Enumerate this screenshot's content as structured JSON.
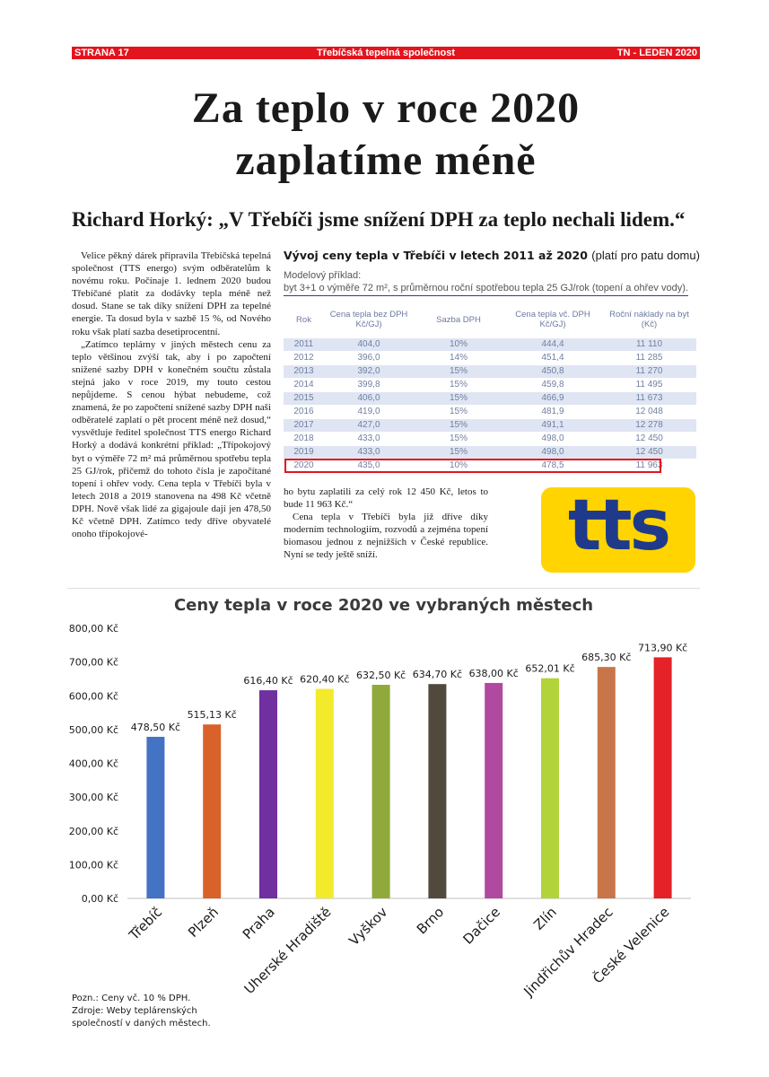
{
  "header": {
    "page": "STRANA 17",
    "publisher": "Třebíčská tepelná společnost",
    "issue": "TN - LEDEN 2020"
  },
  "article": {
    "title_line1": "Za teplo v roce 2020",
    "title_line2": "zaplatíme méně",
    "subtitle": "Richard Horký: „V Třebíči jsme snížení DPH za teplo nechali lidem.“",
    "col1": [
      "Velice pěkný dárek připravila Třebíčská tepelná společnost (TTS energo) svým odběratelům k novému roku. Počínaje 1. lednem 2020 budou Třebíčané platit za dodávky tepla méně než dosud. Stane se tak díky snížení DPH za tepelné energie. Ta dosud byla v sazbě 15 %, od Nového roku však platí sazba desetiprocentní.",
      "„Zatímco teplárny v jiných městech cenu za teplo většinou zvýší tak, aby i po započtení snížené sazby DPH v konečném součtu zůstala stejná jako v roce 2019, my touto cestou nepůjdeme. S cenou hýbat nebudeme, což znamená, že po započtení snížené sazby DPH naši odběratelé zaplatí o pět procent méně než dosud,“ vysvětluje ředitel společnost TTS energo Richard Horký a dodává konkrétní příklad: „Třípokojový byt o výměře 72 m² má průměrnou spotřebu tepla 25 GJ/rok, přičemž do tohoto čísla je započítané topení i ohřev vody. Cena tepla v Třebíči byla v letech 2018 a 2019 stanovena na 498 Kč včetně DPH. Nově však lidé za gigajoule dají jen 478,50 Kč včetně DPH. Zatímco tedy dříve obyvatelé onoho třípokojové-"
    ],
    "col2": [
      "ho bytu zaplatili za celý rok 12 450 Kč, letos to bude 11 963 Kč.“",
      "Cena tepla v Třebíči byla již dříve díky moderním technologiím, rozvodů a zejména topení biomasou jednou z nejnižších v České republice. Nyní se tedy ještě sníží."
    ]
  },
  "price_table": {
    "title_bold": "Vývoj ceny tepla v Třebíči v letech 2011 až 2020",
    "title_normal": "(platí pro patu domu)",
    "model_line1": "Modelový příklad:",
    "model_line2": "byt 3+1 o výměře 72 m², s průměrnou roční spotřebou tepla 25 GJ/rok (topení a ohřev vody).",
    "headers": [
      "Rok",
      "Cena tepla bez DPH Kč/GJ)",
      "Sazba DPH",
      "Cena tepla vč. DPH Kč/GJ)",
      "Roční náklady na byt (Kč)"
    ],
    "rows": [
      [
        "2011",
        "404,0",
        "10%",
        "444,4",
        "11 110"
      ],
      [
        "2012",
        "396,0",
        "14%",
        "451,4",
        "11 285"
      ],
      [
        "2013",
        "392,0",
        "15%",
        "450,8",
        "11 270"
      ],
      [
        "2014",
        "399,8",
        "15%",
        "459,8",
        "11 495"
      ],
      [
        "2015",
        "406,0",
        "15%",
        "466,9",
        "11 673"
      ],
      [
        "2016",
        "419,0",
        "15%",
        "481,9",
        "12 048"
      ],
      [
        "2017",
        "427,0",
        "15%",
        "491,1",
        "12 278"
      ],
      [
        "2018",
        "433,0",
        "15%",
        "498,0",
        "12 450"
      ],
      [
        "2019",
        "433,0",
        "15%",
        "498,0",
        "12 450"
      ],
      [
        "2020",
        "435,0",
        "10%",
        "478,5",
        "11 963"
      ]
    ]
  },
  "logo_text": "tts",
  "chart_data": {
    "type": "bar",
    "title": "Ceny tepla v roce 2020 ve vybraných městech",
    "categories": [
      "Třebíč",
      "Plzeň",
      "Praha",
      "Uherské Hradiště",
      "Vyškov",
      "Brno",
      "Dačice",
      "Zlín",
      "Jindřichův Hradec",
      "České Velenice"
    ],
    "values": [
      478.5,
      515.13,
      616.4,
      620.4,
      632.5,
      634.7,
      638.0,
      652.01,
      685.3,
      713.9
    ],
    "data_labels": [
      "478,50 Kč",
      "515,13 Kč",
      "616,40 Kč",
      "620,40 Kč",
      "632,50 Kč",
      "634,70 Kč",
      "638,00 Kč",
      "652,01 Kč",
      "685,30 Kč",
      "713,90 Kč"
    ],
    "colors": [
      "#4472c4",
      "#d9622b",
      "#7030a0",
      "#f2ea2b",
      "#8faa3a",
      "#514a3c",
      "#b04aa0",
      "#b3d33a",
      "#c8754a",
      "#e42228"
    ],
    "ylim": [
      0,
      800
    ],
    "yticks": [
      0,
      100,
      200,
      300,
      400,
      500,
      600,
      700,
      800
    ],
    "ytick_labels": [
      "0,00 Kč",
      "100,00 Kč",
      "200,00 Kč",
      "300,00 Kč",
      "400,00 Kč",
      "500,00 Kč",
      "600,00 Kč",
      "700,00 Kč",
      "800,00 Kč"
    ],
    "grid": false
  },
  "chart_note": [
    "Pozn.: Ceny vč. 10 % DPH.",
    "Zdroje: Weby teplárenských",
    "společností v daných městech."
  ]
}
